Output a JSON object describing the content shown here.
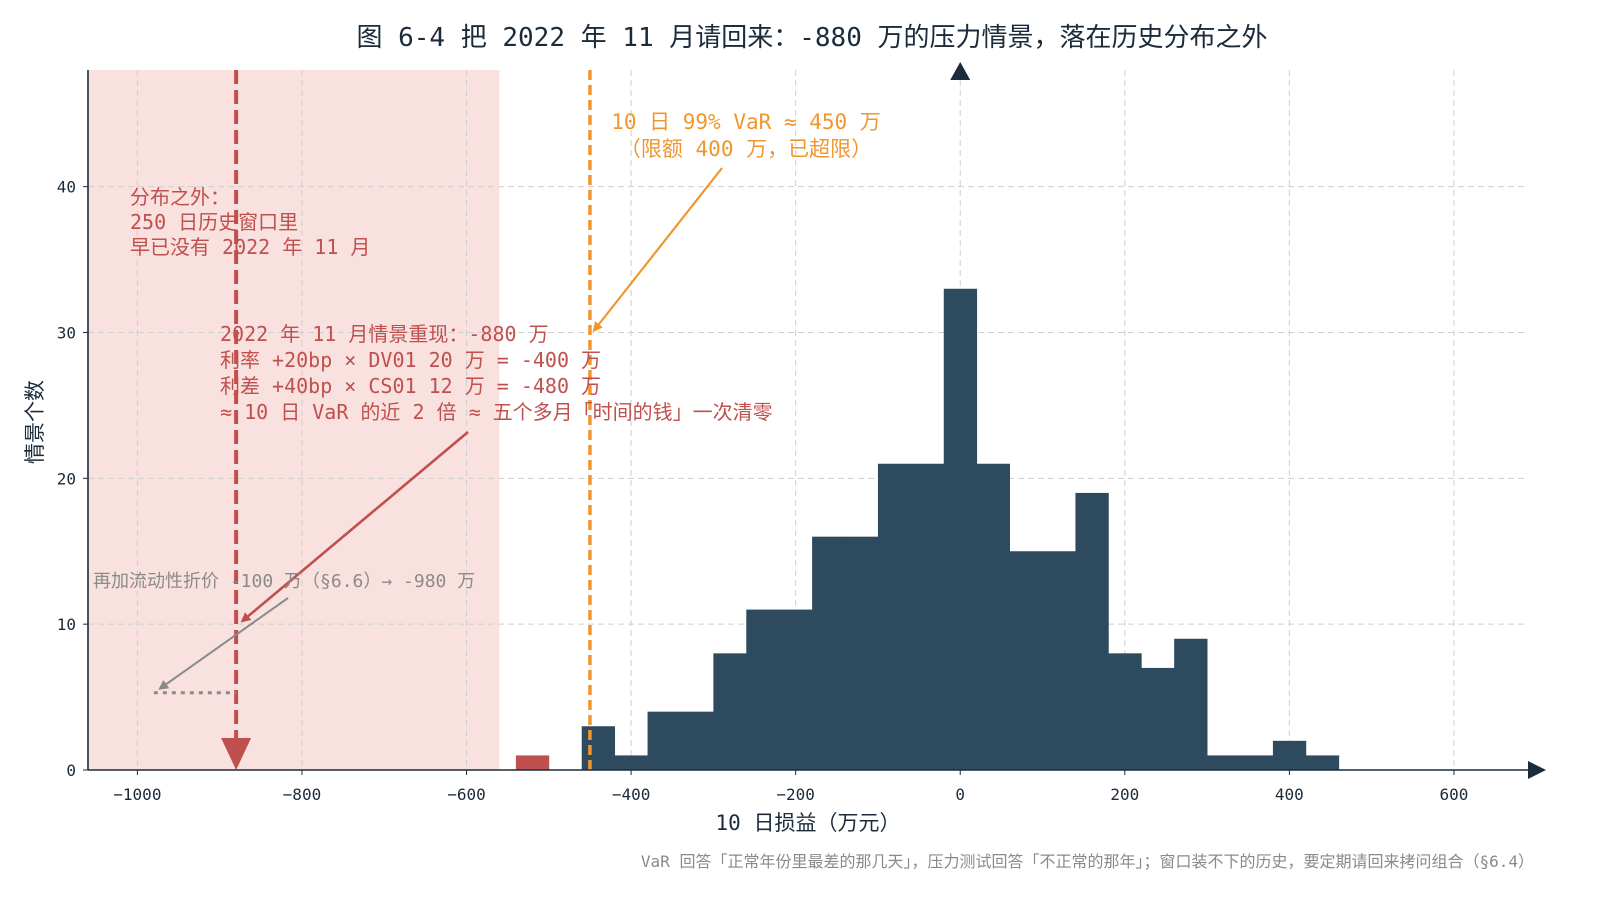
{
  "chart_data": {
    "type": "bar",
    "title": "图 6-4 把 2022 年 11 月请回来：-880 万的压力情景，落在历史分布之外",
    "xlabel": "10 日损益（万元）",
    "ylabel": "情景个数",
    "xlim": [
      -1060,
      690
    ],
    "ylim": [
      0,
      48
    ],
    "xticks": [
      -1000,
      -800,
      -600,
      -400,
      -200,
      0,
      200,
      400,
      600
    ],
    "xtick_labels": [
      "−1000",
      "−800",
      "−600",
      "−400",
      "−200",
      "0",
      "200",
      "400",
      "600"
    ],
    "yticks": [
      0,
      10,
      20,
      30,
      40
    ],
    "ytick_labels": [
      "0",
      "10",
      "20",
      "30",
      "40"
    ],
    "grid": true,
    "bin_width": 40,
    "bins": [
      {
        "left": -540,
        "count": 1,
        "tail": true
      },
      {
        "left": -460,
        "count": 3,
        "tail": false
      },
      {
        "left": -420,
        "count": 1,
        "tail": false
      },
      {
        "left": -380,
        "count": 4,
        "tail": false
      },
      {
        "left": -340,
        "count": 4,
        "tail": false
      },
      {
        "left": -300,
        "count": 8,
        "tail": false
      },
      {
        "left": -260,
        "count": 11,
        "tail": false
      },
      {
        "left": -220,
        "count": 11,
        "tail": false
      },
      {
        "left": -180,
        "count": 16,
        "tail": false
      },
      {
        "left": -140,
        "count": 16,
        "tail": false
      },
      {
        "left": -100,
        "count": 21,
        "tail": false
      },
      {
        "left": -60,
        "count": 21,
        "tail": false
      },
      {
        "left": -20,
        "count": 33,
        "tail": false
      },
      {
        "left": 20,
        "count": 21,
        "tail": false
      },
      {
        "left": 60,
        "count": 15,
        "tail": false
      },
      {
        "left": 100,
        "count": 15,
        "tail": false
      },
      {
        "left": 140,
        "count": 19,
        "tail": false
      },
      {
        "left": 180,
        "count": 8,
        "tail": false
      },
      {
        "left": 220,
        "count": 7,
        "tail": false
      },
      {
        "left": 260,
        "count": 9,
        "tail": false
      },
      {
        "left": 300,
        "count": 1,
        "tail": false
      },
      {
        "left": 340,
        "count": 1,
        "tail": false
      },
      {
        "left": 380,
        "count": 2,
        "tail": false
      },
      {
        "left": 420,
        "count": 1,
        "tail": false
      }
    ],
    "shaded_region": {
      "from": -1060,
      "to": -560
    },
    "var_line": {
      "x": -450
    },
    "stress_line": {
      "x": -880
    },
    "liquidity_level": {
      "from": -980,
      "to": -880,
      "y": 5.3
    },
    "annotations": {
      "outside_lines": [
        "分布之外：",
        "250 日历史窗口里",
        "早已没有 2022 年 11 月"
      ],
      "var_lines": [
        "10 日 99% VaR ≈ 450 万",
        "（限额 400 万，已超限）"
      ],
      "stress_lines": [
        "2022 年 11 月情景重现：-880 万",
        "利率 +20bp × DV01 20 万 = -400 万",
        "利差 +40bp × CS01 12 万 = -480 万",
        "≈ 10 日 VaR 的近 2 倍 ≈ 五个多月「时间的钱」一次清零"
      ],
      "liquidity_text": "再加流动性折价 -100 万（§6.6）→ -980 万"
    },
    "footnote": "VaR 回答「正常年份里最差的那几天」，压力测试回答「不正常的那年」；窗口装不下的历史，要定期请回来拷问组合（§6.4）",
    "colors": {
      "bar": "#2e4a5f",
      "tail_bar": "#c0504d",
      "shade": "#f9e1df",
      "var_line": "#f0962d",
      "stress_line": "#c0504d",
      "gray_arrow": "#8a8a8a",
      "axis": "#1b2b3a"
    }
  }
}
